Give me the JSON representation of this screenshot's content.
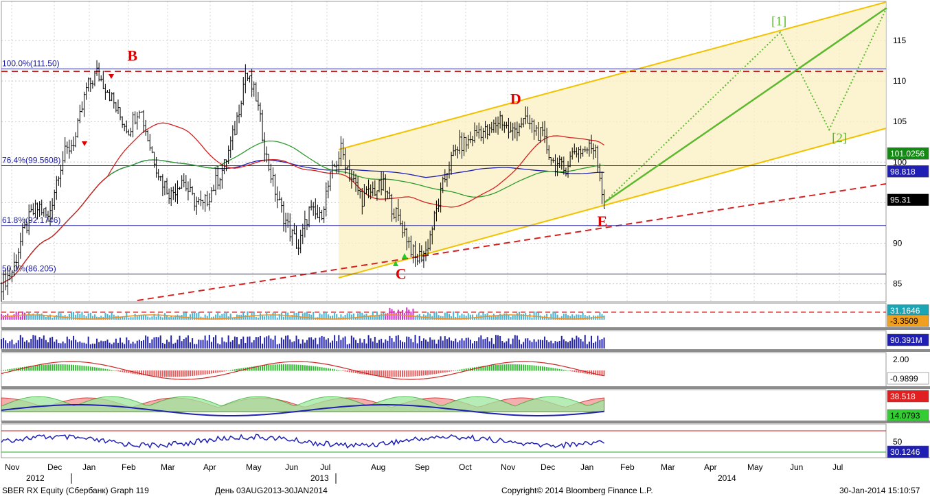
{
  "chart_data": {
    "type": "candlestick",
    "instrument": "SBER RX Equity (Сбербанк) Graph 119",
    "period": "День 03AUG2013-30JAN2014",
    "copyright": "Copyright© 2014 Bloomberg Finance L.P.",
    "timestamp": "30-Jan-2014 15:10:57",
    "x_month_labels": [
      "Nov",
      "Dec",
      "Jan",
      "Feb",
      "Mar",
      "Apr",
      "May",
      "Jun",
      "Jul",
      "Aug",
      "Sep",
      "Oct",
      "Nov",
      "Dec",
      "Jan",
      "Feb",
      "Mar",
      "Apr",
      "May",
      "Jun",
      "Jul"
    ],
    "x_year_labels": [
      "2012",
      "2013",
      "2014"
    ],
    "y_ticks": [
      85,
      90,
      95,
      100,
      105,
      110,
      115
    ],
    "ylim": [
      82,
      120
    ],
    "price_series": {
      "t": [
        0,
        5,
        10,
        14,
        18,
        22,
        27,
        30,
        35,
        40,
        45,
        50,
        55,
        60,
        65,
        70,
        75,
        80,
        85,
        90,
        95,
        100,
        105,
        110,
        115,
        120,
        125,
        130,
        135,
        140,
        145,
        150,
        155,
        160,
        165,
        170,
        175,
        180,
        185,
        190,
        195,
        200,
        205,
        210,
        215,
        220,
        225,
        230,
        235,
        240,
        245,
        250,
        255,
        260,
        265,
        270,
        275,
        280,
        284
      ],
      "close": [
        85,
        86.5,
        91,
        93.5,
        94.5,
        93,
        99,
        101,
        103,
        109,
        111,
        109,
        106,
        104,
        107,
        102,
        98,
        96,
        98,
        95.5,
        94.5,
        97,
        99.5,
        104,
        111,
        108,
        100.5,
        95.5,
        92,
        89.5,
        94,
        93,
        98,
        101.5,
        98,
        95.5,
        96.5,
        97,
        94,
        91.5,
        88,
        89,
        94,
        99,
        102,
        102.5,
        104,
        103.5,
        105.5,
        103.5,
        105,
        104.5,
        103,
        100,
        99,
        101.5,
        101.5,
        102,
        94.6
      ]
    },
    "wave_labels": [
      {
        "label": "B",
        "t": 60,
        "price": 111.5
      },
      {
        "label": "C",
        "t": 188,
        "price": 88.3
      },
      {
        "label": "D",
        "t": 243,
        "price": 106.5
      },
      {
        "label": "E",
        "t": 284,
        "price": 94.6
      }
    ],
    "projection_labels": [
      "[1]",
      "[2]"
    ],
    "projection_points": {
      "w1": {
        "t": 367,
        "price": 116
      },
      "w2": {
        "t": 390,
        "price": 104
      },
      "end": {
        "t": 417,
        "price": 119
      }
    },
    "fibonacci_levels": [
      {
        "label": "100.0%(111.50)",
        "price": 111.5
      },
      {
        "label": "76.4%(99.5608)",
        "price": 99.5608
      },
      {
        "label": "61.8%(92.1746)",
        "price": 92.1746
      },
      {
        "label": "50.0%(86.205)",
        "price": 86.205
      }
    ],
    "last_value_badges": [
      {
        "text": "101.0256",
        "bg": "#138a13",
        "fg": "#ffffff",
        "panel": "price",
        "value": 101.0256
      },
      {
        "text": "98.818",
        "bg": "#1f1fb4",
        "fg": "#ffffff",
        "panel": "price",
        "value": 98.818
      },
      {
        "text": "95.31",
        "bg": "#000000",
        "fg": "#ffffff",
        "panel": "price",
        "value": 95.31
      },
      {
        "text": "31.1646",
        "bg": "#1aa6b4",
        "fg": "#ffffff",
        "panel": "osc1",
        "value": 31.1646
      },
      {
        "text": "-3.3509",
        "bg": "#f0a020",
        "fg": "#000000",
        "panel": "osc1",
        "value": -3.3509
      },
      {
        "text": "90.391M",
        "bg": "#1f1fb4",
        "fg": "#ffffff",
        "panel": "volume",
        "value": 90.391
      },
      {
        "text": "-0.9899",
        "bg": "#ffffff",
        "fg": "#000000",
        "panel": "macd",
        "value": -0.9899
      },
      {
        "text": "38.518",
        "bg": "#e02020",
        "fg": "#ffffff",
        "panel": "dmi",
        "value": 38.518
      },
      {
        "text": "14.0793",
        "bg": "#33cc33",
        "fg": "#000000",
        "panel": "dmi",
        "value": 14.0793
      },
      {
        "text": "30.1246",
        "bg": "#1f1fb4",
        "fg": "#ffffff",
        "panel": "rsi",
        "value": 30.1246
      }
    ],
    "panel_ticks": {
      "macd": "2.00",
      "rsi": "50"
    },
    "colors": {
      "ma_red": "#d42020",
      "ma_green": "#2e9a2e",
      "ma_blue": "#2020b4",
      "channel": "#f2c200",
      "channel_fill": "#fbf0c0",
      "projection": "#5cb82e",
      "resistance": "#d42020"
    }
  }
}
